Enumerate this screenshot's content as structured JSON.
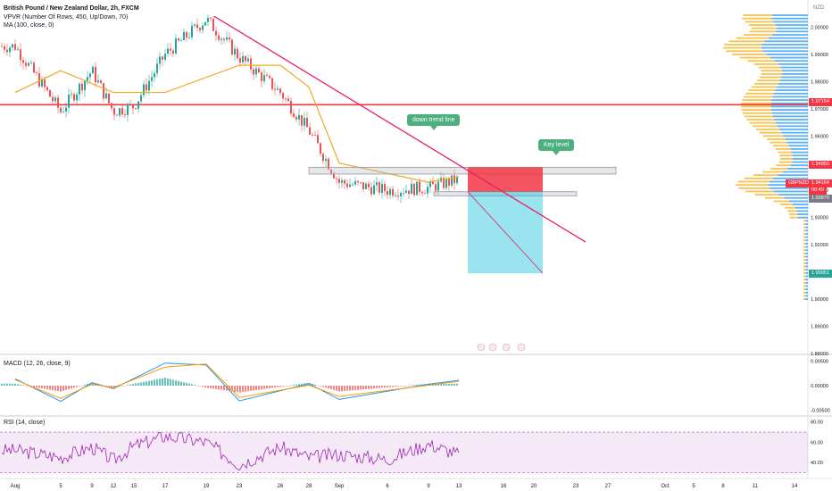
{
  "header": {
    "title": "British Pound / New Zealand Dollar, 2h, FXCM",
    "indicator_vpvr": "VPVR (Number Of Rows, 450, Up/Down, 70)",
    "indicator_ma": "MA (100, close, 0)"
  },
  "chart_data": [
    {
      "type": "candlestick",
      "symbol": "GBPNZD",
      "currency": "NZD",
      "ylim": [
        1.88,
        2.01
      ],
      "y_ticks": [
        1.88,
        1.89,
        1.9,
        1.91,
        1.92,
        1.93,
        1.94,
        1.95,
        1.96,
        1.97,
        1.98,
        1.99,
        2.0
      ],
      "y_tick_labels": [
        "1.88000",
        "1.89000",
        "1.90000",
        "1.91000",
        "1.92000",
        "1.93000",
        "1.94000",
        "1.95000",
        "1.96000",
        "1.97000",
        "1.98000",
        "1.99000",
        "2.00000"
      ],
      "x_tick_labels": [
        "Aug",
        "5",
        "9",
        "12",
        "15",
        "17",
        "19",
        "23",
        "26",
        "28",
        "Sep",
        "6",
        "9",
        "13",
        "16",
        "20",
        "23",
        "27",
        "Oct",
        "5",
        "8",
        "11",
        "14"
      ],
      "price_path": [
        [
          "Aug",
          1.993
        ],
        [
          "5",
          1.969
        ],
        [
          "9",
          1.984
        ],
        [
          "12",
          1.969
        ],
        [
          "15",
          1.971
        ],
        [
          "17",
          1.99
        ],
        [
          "19",
          2.003
        ],
        [
          "23",
          1.989
        ],
        [
          "26",
          1.976
        ],
        [
          "28",
          1.962
        ],
        [
          "Sep",
          1.943
        ],
        [
          "6",
          1.94
        ],
        [
          "9",
          1.941
        ],
        [
          "13",
          1.944
        ]
      ],
      "moving_average": {
        "name": "MA (100, close, 0)",
        "path": [
          [
            "Aug",
            1.976
          ],
          [
            "5",
            1.984
          ],
          [
            "12",
            1.976
          ],
          [
            "17",
            1.976
          ],
          [
            "23",
            1.986
          ],
          [
            "26",
            1.986
          ],
          [
            "28",
            1.978
          ],
          [
            "Sep",
            1.95
          ],
          [
            "9",
            1.943
          ],
          [
            "13",
            1.945
          ]
        ]
      },
      "drawings": {
        "horizontal_level": 1.9715,
        "down_trend_line": {
          "from": [
            "19",
            2.004
          ],
          "to": [
            "23",
            1.921
          ]
        },
        "zones": [
          {
            "from": "28",
            "to": "20",
            "top": 1.9485,
            "bottom": 1.946
          },
          {
            "from": "9",
            "to": "23",
            "top": 1.9395,
            "bottom": 1.938
          }
        ],
        "short_position": {
          "from": "13",
          "to": "20",
          "stop": 1.9485,
          "entry": 1.9395,
          "target": 1.9095
        }
      },
      "annotations": {
        "down_trend_line": "down trend line",
        "key_level": "Key level"
      },
      "price_badges": [
        {
          "value": "1.97154",
          "color": "#f23645"
        },
        {
          "value": "1.94850",
          "color": "#f23645"
        },
        {
          "value": "1.94164",
          "color": "#f23645"
        },
        {
          "value": "GBPNZD",
          "color": "#f23645"
        },
        {
          "value": "00:49",
          "color": "#f23645"
        },
        {
          "value": "1.93870",
          "color": "#787b86"
        },
        {
          "value": "1.90951",
          "color": "#26a69a"
        }
      ],
      "volume_profile": {
        "colors": {
          "up": "#2196f3",
          "down": "#f5b324"
        },
        "point_of_control": 1.971
      }
    },
    {
      "type": "line",
      "title": "MACD (12, 26, close, 9)",
      "ylim": [
        -0.006,
        0.006
      ],
      "y_tick_labels": [
        "0.00500",
        "0.00000",
        "-0.00500"
      ],
      "series": [
        {
          "color": "#2196f3",
          "path": [
            [
              "Aug",
              0.0014
            ],
            [
              "5",
              -0.0032
            ],
            [
              "9",
              0.0006
            ],
            [
              "12",
              -0.0006
            ],
            [
              "17",
              0.0046
            ],
            [
              "19",
              0.0042
            ],
            [
              "23",
              -0.0031
            ],
            [
              "28",
              0.0004
            ],
            [
              "Sep",
              -0.0028
            ],
            [
              "9",
              0.0003
            ],
            [
              "13",
              0.0011
            ]
          ]
        },
        {
          "color": "#ff9800",
          "path": [
            [
              "Aug",
              0.0012
            ],
            [
              "5",
              -0.0026
            ],
            [
              "9",
              0.0003
            ],
            [
              "12",
              -0.0004
            ],
            [
              "17",
              0.0038
            ],
            [
              "19",
              0.0044
            ],
            [
              "23",
              -0.0024
            ],
            [
              "28",
              0.0001
            ],
            [
              "Sep",
              -0.0022
            ],
            [
              "9",
              0.0001
            ],
            [
              "13",
              0.0009
            ]
          ]
        }
      ]
    },
    {
      "type": "line",
      "title": "RSI (14, close)",
      "ylim": [
        25,
        85
      ],
      "y_tick_labels": [
        "80.00",
        "60.00",
        "40.00",
        "20.00"
      ],
      "bands": [
        30,
        70
      ],
      "series": [
        {
          "color": "#9c27b0",
          "path": [
            [
              "Aug",
              52
            ],
            [
              "5",
              45
            ],
            [
              "9",
              55
            ],
            [
              "12",
              42
            ],
            [
              "15",
              56
            ],
            [
              "17",
              66
            ],
            [
              "19",
              60
            ],
            [
              "23",
              38
            ],
            [
              "26",
              55
            ],
            [
              "28",
              45
            ],
            [
              "Sep",
              48
            ],
            [
              "6",
              43
            ],
            [
              "9",
              58
            ],
            [
              "13",
              48
            ]
          ]
        }
      ]
    }
  ]
}
